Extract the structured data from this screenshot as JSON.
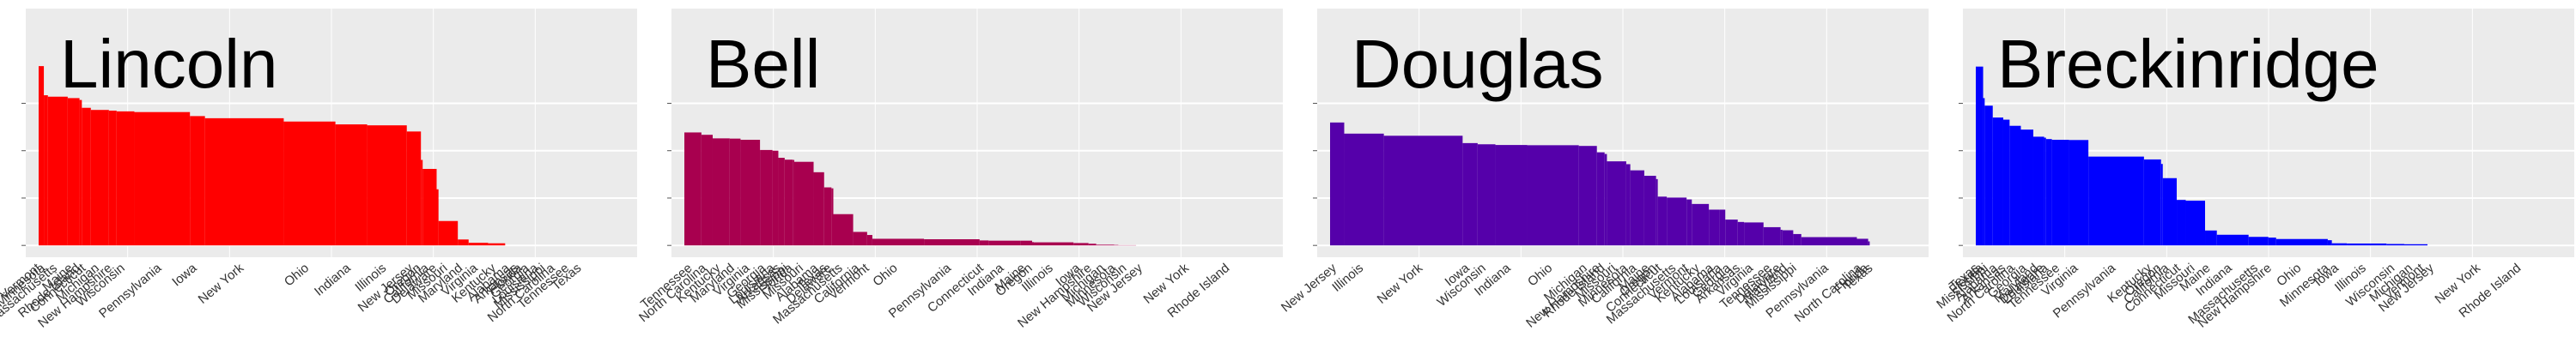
{
  "chart_data": [
    {
      "type": "bar",
      "title": "Lincoln",
      "color": "#ff0000",
      "ylim": [
        -5,
        100
      ],
      "yticks": [
        0,
        20,
        40,
        60
      ],
      "grid": true,
      "categories": [
        "Vermont",
        "Minnesota",
        "Massachusetts",
        "Maine",
        "Rhode Island",
        "Connecticut",
        "Michigan",
        "New Hampshire",
        "Wisconsin",
        "Pennsylvania",
        "Iowa",
        "New York",
        "Ohio",
        "Indiana",
        "Illinois",
        "New Jersey",
        "Oregon",
        "California",
        "Delaware",
        "Missouri",
        "Maryland",
        "Virginia",
        "Kentucky",
        "Alabama",
        "Arkansas",
        "Florida",
        "Georgia",
        "Louisiana",
        "Mississippi",
        "North Carolina",
        "Tennessee",
        "Texas"
      ],
      "values": [
        75.7,
        63.4,
        62.8,
        62.2,
        61.4,
        58.1,
        57.2,
        56.9,
        56.6,
        56.3,
        54.6,
        53.7,
        52.3,
        51.1,
        50.7,
        48.1,
        36.1,
        32.3,
        23.7,
        10.3,
        2.5,
        1.1,
        0.9,
        0,
        0,
        0,
        0,
        0,
        0,
        0,
        0,
        0
      ],
      "widths": [
        44.6,
        34.8,
        169.9,
        100.9,
        20.0,
        77.2,
        154.8,
        66.0,
        152.2,
        476.4,
        128.7,
        675.2,
        442.9,
        272.1,
        339.7,
        121.2,
        14.8,
        119.8,
        16.1,
        165.6,
        92.5,
        166.9,
        146.2,
        90.1,
        54.2,
        13.3,
        106.7,
        50.5,
        69.1,
        96.7,
        146.1,
        62.9
      ]
    },
    {
      "type": "bar",
      "title": "Bell",
      "color": "#a8004f",
      "ylim": [
        -5,
        100
      ],
      "yticks": [
        0,
        20,
        40,
        60
      ],
      "grid": true,
      "categories": [
        "Tennessee",
        "North Carolina",
        "Kentucky",
        "Maryland",
        "Virginia",
        "Georgia",
        "Louisiana",
        "Arkansas",
        "Mississippi",
        "Florida",
        "Missouri",
        "Alabama",
        "Texas",
        "Delaware",
        "Massachusetts",
        "California",
        "Vermont",
        "Ohio",
        "Pennsylvania",
        "Connecticut",
        "Indiana",
        "Maine",
        "Oregon",
        "Illinois",
        "Iowa",
        "New Hampshire",
        "Michigan",
        "Minnesota",
        "Wisconsin",
        "New Jersey",
        "New York",
        "Rhode Island"
      ],
      "values": [
        47.7,
        46.7,
        45.2,
        45.1,
        44.6,
        40.3,
        40.0,
        37.0,
        36.2,
        36.1,
        35.3,
        30.9,
        24.5,
        24.1,
        13.2,
        5.7,
        4.4,
        2.8,
        2.6,
        2.1,
        2.0,
        2.0,
        1.4,
        1.3,
        1.0,
        0.7,
        0.3,
        0.2,
        0.1,
        0,
        0,
        0
      ],
      "widths": [
        146.1,
        96.7,
        146.2,
        92.5,
        166.9,
        106.7,
        50.5,
        54.2,
        69.1,
        13.3,
        165.6,
        90.1,
        62.9,
        16.1,
        169.9,
        119.8,
        44.6,
        442.9,
        476.4,
        77.2,
        272.1,
        100.9,
        14.8,
        339.7,
        128.7,
        66.0,
        154.8,
        34.8,
        152.2,
        121.2,
        675.2,
        20.0
      ]
    },
    {
      "type": "bar",
      "title": "Douglas",
      "color": "#5500aa",
      "ylim": [
        -5,
        100
      ],
      "yticks": [
        0,
        20,
        40,
        60
      ],
      "grid": true,
      "categories": [
        "New Jersey",
        "Illinois",
        "New York",
        "Iowa",
        "Wisconsin",
        "Indiana",
        "Ohio",
        "Michigan",
        "New Hampshire",
        "Rhode Island",
        "Missouri",
        "Minnesota",
        "California",
        "Maine",
        "Oregon",
        "Connecticut",
        "Massachusetts",
        "Vermont",
        "Kentucky",
        "Alabama",
        "Louisiana",
        "Georgia",
        "Arkansas",
        "Virginia",
        "Tennessee",
        "Delaware",
        "Maryland",
        "Mississippi",
        "Pennsylvania",
        "North Carolina",
        "Florida",
        "Texas"
      ],
      "values": [
        51.9,
        47.2,
        46.3,
        43.2,
        42.7,
        42.4,
        42.3,
        42.0,
        39.3,
        38.6,
        35.5,
        34.3,
        31.7,
        29.4,
        28.0,
        20.6,
        20.2,
        19.4,
        17.5,
        15.1,
        15.1,
        10.9,
        9.9,
        9.7,
        7.7,
        6.6,
        6.4,
        4.8,
        3.5,
        2.8,
        1.7,
        0
      ],
      "widths": [
        121.2,
        339.7,
        675.2,
        128.7,
        152.2,
        272.1,
        442.9,
        154.8,
        66.0,
        20.0,
        165.6,
        34.8,
        119.8,
        100.9,
        14.8,
        77.2,
        169.9,
        44.6,
        146.2,
        90.1,
        50.5,
        106.7,
        54.2,
        166.9,
        146.1,
        16.1,
        92.5,
        69.1,
        476.4,
        96.7,
        13.3,
        62.9
      ]
    },
    {
      "type": "bar",
      "title": "Breckinridge",
      "color": "#0000ff",
      "ylim": [
        -5,
        100
      ],
      "yticks": [
        0,
        20,
        40,
        60
      ],
      "grid": true,
      "categories": [
        "Texas",
        "Florida",
        "Mississippi",
        "Alabama",
        "Arkansas",
        "North Carolina",
        "Georgia",
        "Maryland",
        "Delaware",
        "Louisiana",
        "Tennessee",
        "Virginia",
        "Pennsylvania",
        "Kentucky",
        "Oregon",
        "California",
        "Connecticut",
        "Missouri",
        "Maine",
        "Indiana",
        "Massachusetts",
        "New Hampshire",
        "Ohio",
        "Minnesota",
        "Iowa",
        "Illinois",
        "Wisconsin",
        "Michigan",
        "Vermont",
        "New Jersey",
        "New York",
        "Rhode Island"
      ],
      "values": [
        75.5,
        62.2,
        59.0,
        54.0,
        53.1,
        50.5,
        48.9,
        45.9,
        45.5,
        44.9,
        44.6,
        44.5,
        37.5,
        36.3,
        34.4,
        28.4,
        19.2,
        18.9,
        6.3,
        4.5,
        3.6,
        3.3,
        2.7,
        2.2,
        0.9,
        0.8,
        0.6,
        0.5,
        0.5,
        0,
        0,
        0
      ],
      "widths": [
        62.9,
        13.3,
        69.1,
        90.1,
        54.2,
        96.7,
        106.7,
        92.5,
        16.1,
        50.5,
        146.1,
        166.9,
        476.4,
        146.2,
        14.8,
        119.8,
        77.2,
        165.6,
        100.9,
        272.1,
        169.9,
        66.0,
        442.9,
        34.8,
        128.7,
        339.7,
        152.2,
        154.8,
        44.6,
        121.2,
        675.2,
        20.0
      ]
    }
  ]
}
